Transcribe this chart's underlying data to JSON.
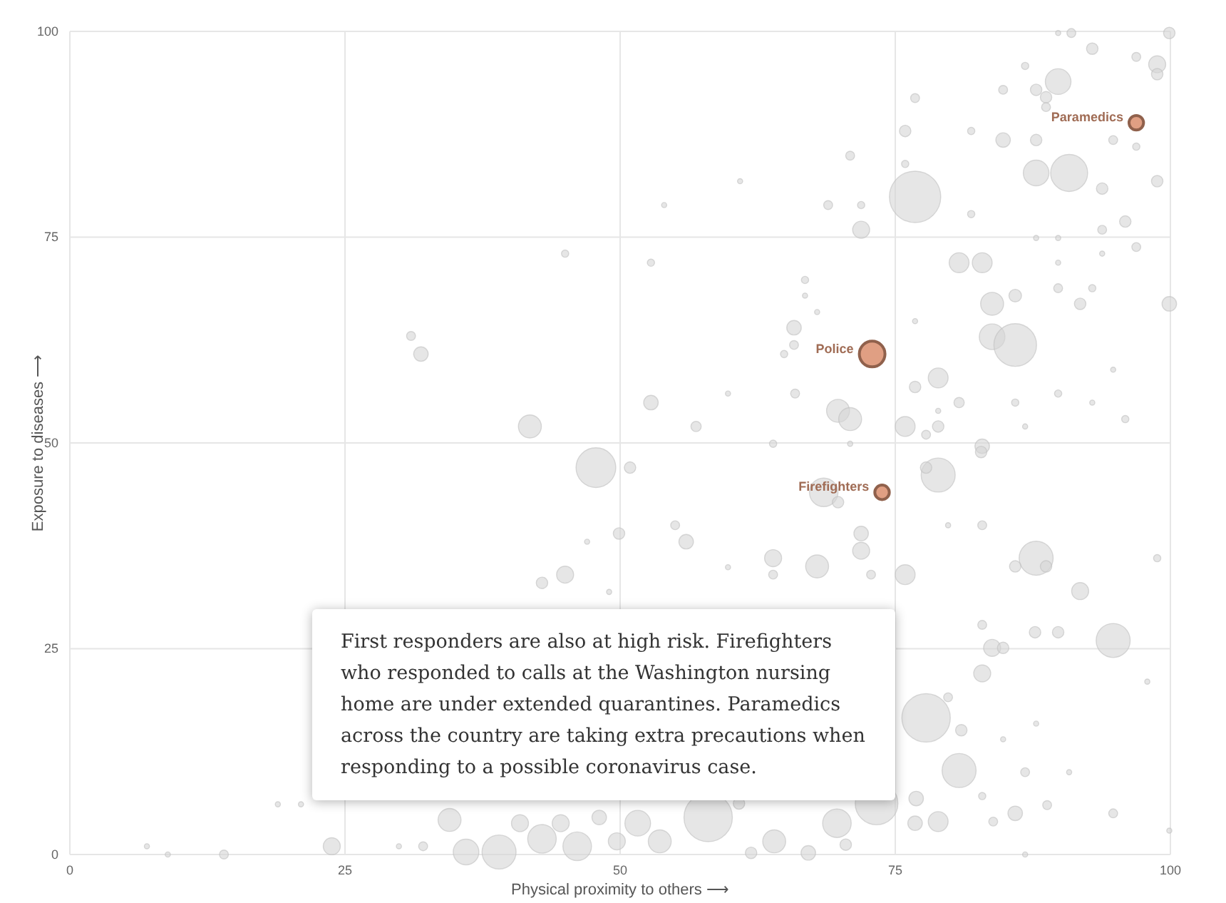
{
  "chart_data": {
    "type": "bubble",
    "xlabel": "Physical proximity to others ⟶",
    "ylabel": "Exposure to diseases ⟶",
    "xlim": [
      0,
      100
    ],
    "ylim": [
      0,
      100
    ],
    "xticks": [
      0,
      25,
      50,
      75,
      100
    ],
    "yticks": [
      0,
      25,
      50,
      75,
      100
    ],
    "grid": true,
    "annotations": [
      "First responders are also at high risk. Firefighters who responded to calls at the Washington nursing home are under extended quarantines. Paramedics across the country are taking extra precautions when responding to a possible coronavirus case."
    ],
    "series": [
      {
        "color": "#d6d6d6",
        "x": [
          91,
          99.9,
          89.8,
          92.9,
          98.8,
          98.8,
          96.9,
          89.8,
          86.8,
          84.8,
          87.8,
          88.7,
          88.7,
          76.8,
          75.9,
          81.9,
          84.8,
          87.8,
          94.8,
          96.9,
          70.9,
          75.9,
          87.8,
          90.8,
          60.9,
          98.8,
          93.8,
          76.8,
          54,
          68.9,
          71.9,
          81.9,
          71.9,
          95.9,
          93.8,
          87.8,
          89.8,
          96.9,
          80.8,
          82.9,
          93.8,
          52.8,
          89.8,
          83.8,
          85.9,
          89.8,
          92.9,
          91.8,
          99.9,
          66.8,
          66.8,
          67.9,
          65.8,
          65.8,
          64.9,
          76.8,
          83.8,
          85.9,
          78.9,
          76.8,
          94.8,
          52.8,
          59.8,
          65.9,
          56.9,
          69.8,
          70.9,
          75.9,
          78.9,
          80.8,
          78.9,
          77.8,
          85.9,
          86.8,
          89.8,
          92.9,
          95.9,
          63.9,
          70.9,
          82.9,
          45,
          31,
          31.9,
          41.8,
          47.8,
          78.9,
          77.8,
          68.5,
          69.8,
          82.8,
          50.9,
          87.8,
          85.9,
          88.7,
          67.9,
          63.9,
          63.9,
          71.9,
          71.9,
          72.8,
          75.9,
          56,
          59.8,
          55,
          79.8,
          82.9,
          91.8,
          98.8,
          94.8,
          87.7,
          89.8,
          82.9,
          83.8,
          84.8,
          82.9,
          79.8,
          77.8,
          81,
          87.8,
          84.8,
          80.8,
          86.8,
          90.8,
          85.9,
          88.8,
          94.8,
          83.9,
          82.9,
          78.9,
          99.9,
          76.8,
          86.8,
          97.9,
          23.8,
          14,
          8.9,
          7,
          18.9,
          21,
          34.5,
          36,
          39,
          42.9,
          46.1,
          40.9,
          44.6,
          48.1,
          32.1,
          29.9,
          49.7,
          58,
          51.6,
          53.6,
          64,
          67.1,
          69.7,
          73.3,
          76.9,
          70.5,
          61.9,
          60.8,
          45,
          42.9,
          49,
          47,
          49.9
        ],
        "values": [
          99.8,
          99.8,
          99.8,
          97.9,
          96,
          94.8,
          96.9,
          93.9,
          95.8,
          92.9,
          92.9,
          92,
          90.8,
          91.9,
          87.9,
          87.9,
          86.8,
          86.8,
          86.8,
          86,
          84.9,
          83.9,
          82.8,
          82.8,
          81.8,
          81.8,
          80.9,
          79.9,
          78.9,
          78.9,
          78.9,
          77.8,
          75.9,
          76.9,
          75.9,
          74.9,
          74.9,
          73.8,
          71.9,
          71.9,
          73,
          71.9,
          71.9,
          66.9,
          67.9,
          68.8,
          68.8,
          66.9,
          66.9,
          69.8,
          67.9,
          65.9,
          64,
          61.9,
          60.8,
          64.8,
          62.9,
          61.9,
          57.9,
          56.8,
          58.9,
          54.9,
          56,
          56,
          52,
          53.9,
          52.9,
          52,
          52,
          54.9,
          53.9,
          51,
          54.9,
          52,
          56,
          54.9,
          52.9,
          49.9,
          49.9,
          49.6,
          73,
          63,
          60.8,
          52,
          47,
          46.1,
          47,
          44,
          42.8,
          48.9,
          47,
          36,
          35,
          35,
          35,
          36,
          34,
          39,
          36.9,
          34,
          34,
          38,
          34.9,
          40,
          40,
          40,
          32,
          36,
          26,
          27,
          27,
          27.9,
          25.1,
          25.1,
          22,
          19.1,
          16.6,
          15.1,
          15.9,
          14,
          10.2,
          10,
          10,
          5,
          6,
          5,
          4,
          7.1,
          4,
          2.9,
          3.8,
          0,
          21,
          1,
          0,
          0,
          1,
          6.1,
          6.1,
          4.2,
          0.3,
          0.3,
          1.9,
          1,
          3.8,
          3.8,
          4.5,
          1,
          1,
          1.6,
          4.5,
          3.8,
          1.6,
          1.6,
          0.2,
          3.8,
          6.2,
          6.8,
          1.2,
          0.2,
          6.2,
          34,
          33,
          31.9,
          38,
          39
        ],
        "sizes": [
          0.03,
          0.05,
          0.01,
          0.05,
          0.11,
          0.05,
          0.03,
          0.25,
          0.02,
          0.03,
          0.05,
          0.05,
          0.03,
          0.03,
          0.05,
          0.02,
          0.08,
          0.05,
          0.03,
          0.02,
          0.03,
          0.02,
          0.25,
          0.52,
          0.01,
          0.05,
          0.05,
          1,
          0.01,
          0.03,
          0.02,
          0.02,
          0.11,
          0.05,
          0.03,
          0.01,
          0.01,
          0.03,
          0.15,
          0.15,
          0.01,
          0.02,
          0.01,
          0.2,
          0.06,
          0.03,
          0.02,
          0.05,
          0.08,
          0.02,
          0.01,
          0.01,
          0.08,
          0.03,
          0.02,
          0.01,
          0.25,
          0.69,
          0.15,
          0.05,
          0.01,
          0.08,
          0.01,
          0.03,
          0.04,
          0.2,
          0.2,
          0.15,
          0.05,
          0.04,
          0.01,
          0.03,
          0.02,
          0.01,
          0.02,
          0.01,
          0.02,
          0.02,
          0.01,
          0.08,
          0.02,
          0.03,
          0.08,
          0.2,
          0.6,
          0.44,
          0.05,
          0.31,
          0.05,
          0.05,
          0.05,
          0.44,
          0.05,
          0.05,
          0.2,
          0.11,
          0.03,
          0.08,
          0.11,
          0.03,
          0.15,
          0.08,
          0.01,
          0.03,
          0.01,
          0.03,
          0.11,
          0.02,
          0.44,
          0.05,
          0.05,
          0.03,
          0.11,
          0.05,
          0.11,
          0.03,
          0.89,
          0.05,
          0.01,
          0.01,
          0.44,
          0.03,
          0.01,
          0.08,
          0.03,
          0.03,
          0.03,
          0.02,
          0.15,
          0.01,
          0.08,
          0.01,
          0.01,
          0.11,
          0.03,
          0.01,
          0.01,
          0.01,
          0.01,
          0.2,
          0.25,
          0.44,
          0.31,
          0.31,
          0.11,
          0.11,
          0.08,
          0.03,
          0.01,
          0.11,
          0.89,
          0.25,
          0.2,
          0.2,
          0.08,
          0.31,
          0.69,
          0.08,
          0.05,
          0.05,
          0.05,
          0.11,
          0.05,
          0.01,
          0.01,
          0.05
        ]
      },
      {
        "name": "Paramedics",
        "color": "#dd9575",
        "x": [
          96.9
        ],
        "values": [
          88.9
        ],
        "sizes": [
          0.08
        ]
      },
      {
        "name": "Police",
        "color": "#dd9575",
        "x": [
          72.9
        ],
        "values": [
          60.8
        ],
        "sizes": [
          0.25
        ]
      },
      {
        "name": "Firefighters",
        "color": "#dd9575",
        "x": [
          73.8
        ],
        "values": [
          44
        ],
        "sizes": [
          0.08
        ]
      }
    ]
  }
}
